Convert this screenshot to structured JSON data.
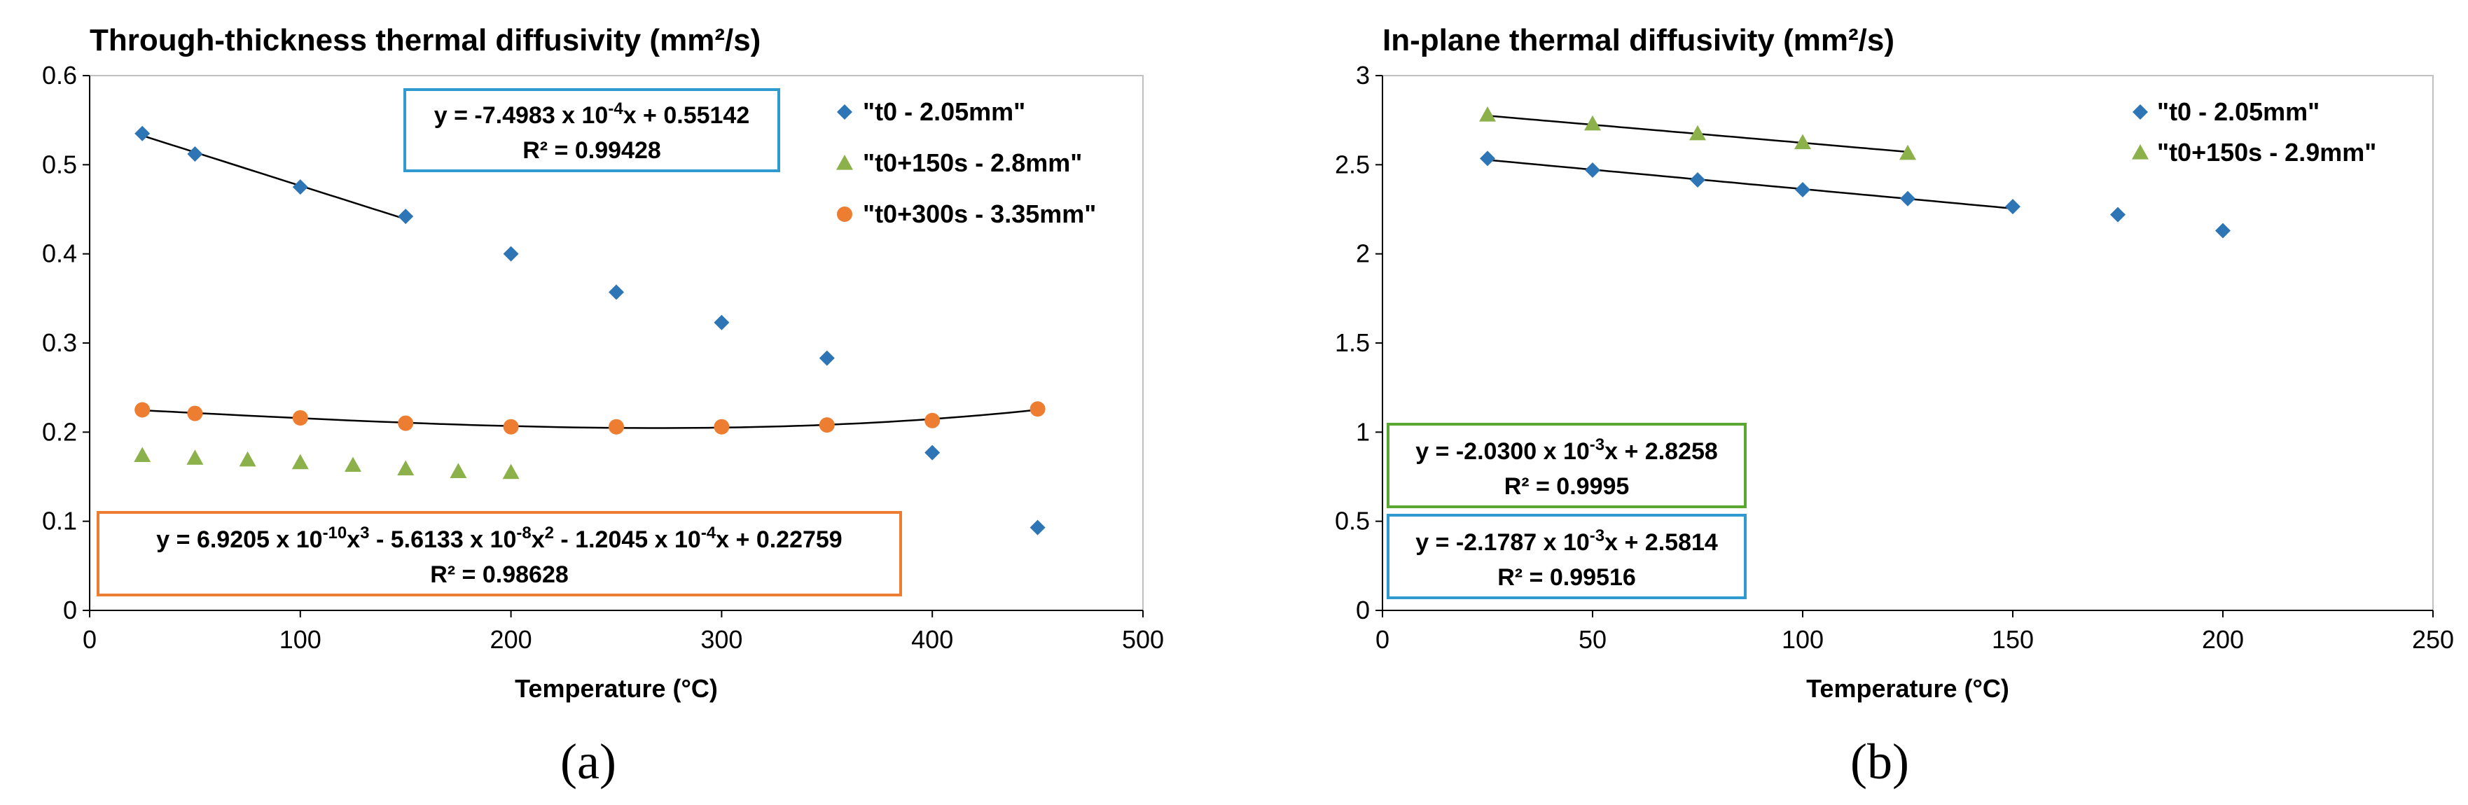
{
  "colors": {
    "blue": "#2E75B6",
    "green": "#8CB14A",
    "orange": "#ED7D31",
    "box_blue": "#2E9AD0",
    "box_green": "#5AA832",
    "box_orange": "#ED7D31"
  },
  "chart_data": [
    {
      "type": "scatter",
      "panel_label": "(a)",
      "title": "Through-thickness thermal diffusivity (mm²/s)",
      "xlabel": "Temperature (°C)",
      "ylabel": "",
      "xlim": [
        0,
        500
      ],
      "ylim": [
        0,
        0.6
      ],
      "xticks": [
        0,
        100,
        200,
        300,
        400,
        500
      ],
      "yticks": [
        0,
        0.1,
        0.2,
        0.3,
        0.4,
        0.5,
        0.6
      ],
      "xtick_labels": [
        "0",
        "100",
        "200",
        "300",
        "400",
        "500"
      ],
      "ytick_labels": [
        "0",
        "0.1",
        "0.2",
        "0.3",
        "0.4",
        "0.5",
        "0.6"
      ],
      "grid": false,
      "series": [
        {
          "name": "\"t0 - 2.05mm\"",
          "marker": "diamond",
          "color": "#2E75B6",
          "x": [
            25,
            50,
            100,
            150,
            200,
            250,
            300,
            350,
            400,
            450
          ],
          "y": [
            0.535,
            0.512,
            0.475,
            0.442,
            0.4,
            0.357,
            0.323,
            0.283,
            0.177,
            0.093
          ]
        },
        {
          "name": "\"t0+150s - 2.8mm\"",
          "marker": "triangle",
          "color": "#8CB14A",
          "x": [
            25,
            50,
            75,
            100,
            125,
            150,
            175,
            200
          ],
          "y": [
            0.174,
            0.171,
            0.169,
            0.166,
            0.163,
            0.159,
            0.156,
            0.155
          ]
        },
        {
          "name": "\"t0+300s - 3.35mm\"",
          "marker": "circle",
          "color": "#ED7D31",
          "x": [
            25,
            50,
            100,
            150,
            200,
            250,
            300,
            350,
            400,
            450
          ],
          "y": [
            0.225,
            0.221,
            0.216,
            0.21,
            0.206,
            0.206,
            0.206,
            0.208,
            0.213,
            0.226
          ]
        }
      ],
      "trendlines": [
        {
          "kind": "linear",
          "coef": [
            -0.00074983,
            0.55142
          ],
          "x_range": [
            25,
            150
          ]
        },
        {
          "kind": "poly3",
          "coef": [
            6.9205e-10,
            -5.6133e-08,
            -0.00012045,
            0.22759
          ],
          "x_range": [
            25,
            450
          ]
        }
      ],
      "annotations": [
        {
          "box_color": "#2E9AD0",
          "line1": [
            {
              "t": "y = -7.4983 x 10"
            },
            {
              "t": "-4",
              "sup": true
            },
            {
              "t": "x + 0.55142"
            }
          ],
          "line2": "R² = 0.99428"
        },
        {
          "box_color": "#ED7D31",
          "line1": [
            {
              "t": "y = 6.9205 x 10"
            },
            {
              "t": "-10",
              "sup": true
            },
            {
              "t": "x"
            },
            {
              "t": "3",
              "sup": true
            },
            {
              "t": " - 5.6133 x 10"
            },
            {
              "t": "-8",
              "sup": true
            },
            {
              "t": "x"
            },
            {
              "t": "2",
              "sup": true
            },
            {
              "t": " - 1.2045 x 10"
            },
            {
              "t": "-4",
              "sup": true
            },
            {
              "t": "x + 0.22759"
            }
          ],
          "line2": "R² = 0.98628"
        }
      ]
    },
    {
      "type": "scatter",
      "panel_label": "(b)",
      "title": "In-plane thermal diffusivity (mm²/s)",
      "xlabel": "Temperature (°C)",
      "ylabel": "",
      "xlim": [
        0,
        250
      ],
      "ylim": [
        0,
        3
      ],
      "xticks": [
        0,
        50,
        100,
        150,
        200,
        250
      ],
      "yticks": [
        0,
        0.5,
        1,
        1.5,
        2,
        2.5,
        3
      ],
      "xtick_labels": [
        "0",
        "50",
        "100",
        "150",
        "200",
        "250"
      ],
      "ytick_labels": [
        "0",
        "0.5",
        "1",
        "1.5",
        "2",
        "2.5",
        "3"
      ],
      "grid": false,
      "series": [
        {
          "name": "\"t0 - 2.05mm\"",
          "marker": "diamond",
          "color": "#2E75B6",
          "x": [
            25,
            50,
            75,
            100,
            125,
            150,
            175,
            200
          ],
          "y": [
            2.535,
            2.47,
            2.415,
            2.36,
            2.31,
            2.265,
            2.22,
            2.13
          ]
        },
        {
          "name": "\"t0+150s - 2.9mm\"",
          "marker": "triangle",
          "color": "#8CB14A",
          "x": [
            25,
            50,
            75,
            100,
            125
          ],
          "y": [
            2.78,
            2.73,
            2.675,
            2.625,
            2.565
          ]
        }
      ],
      "trendlines": [
        {
          "kind": "linear",
          "coef": [
            -0.00203,
            2.8258
          ],
          "x_range": [
            25,
            125
          ]
        },
        {
          "kind": "linear",
          "coef": [
            -0.0021787,
            2.5814
          ],
          "x_range": [
            25,
            150
          ]
        }
      ],
      "annotations": [
        {
          "box_color": "#5AA832",
          "line1": [
            {
              "t": "y = -2.0300 x 10"
            },
            {
              "t": "-3",
              "sup": true
            },
            {
              "t": "x + 2.8258"
            }
          ],
          "line2": "R² = 0.9995"
        },
        {
          "box_color": "#2E9AD0",
          "line1": [
            {
              "t": "y = -2.1787 x 10"
            },
            {
              "t": "-3",
              "sup": true
            },
            {
              "t": "x + 2.5814"
            }
          ],
          "line2": "R² = 0.99516"
        }
      ]
    }
  ]
}
